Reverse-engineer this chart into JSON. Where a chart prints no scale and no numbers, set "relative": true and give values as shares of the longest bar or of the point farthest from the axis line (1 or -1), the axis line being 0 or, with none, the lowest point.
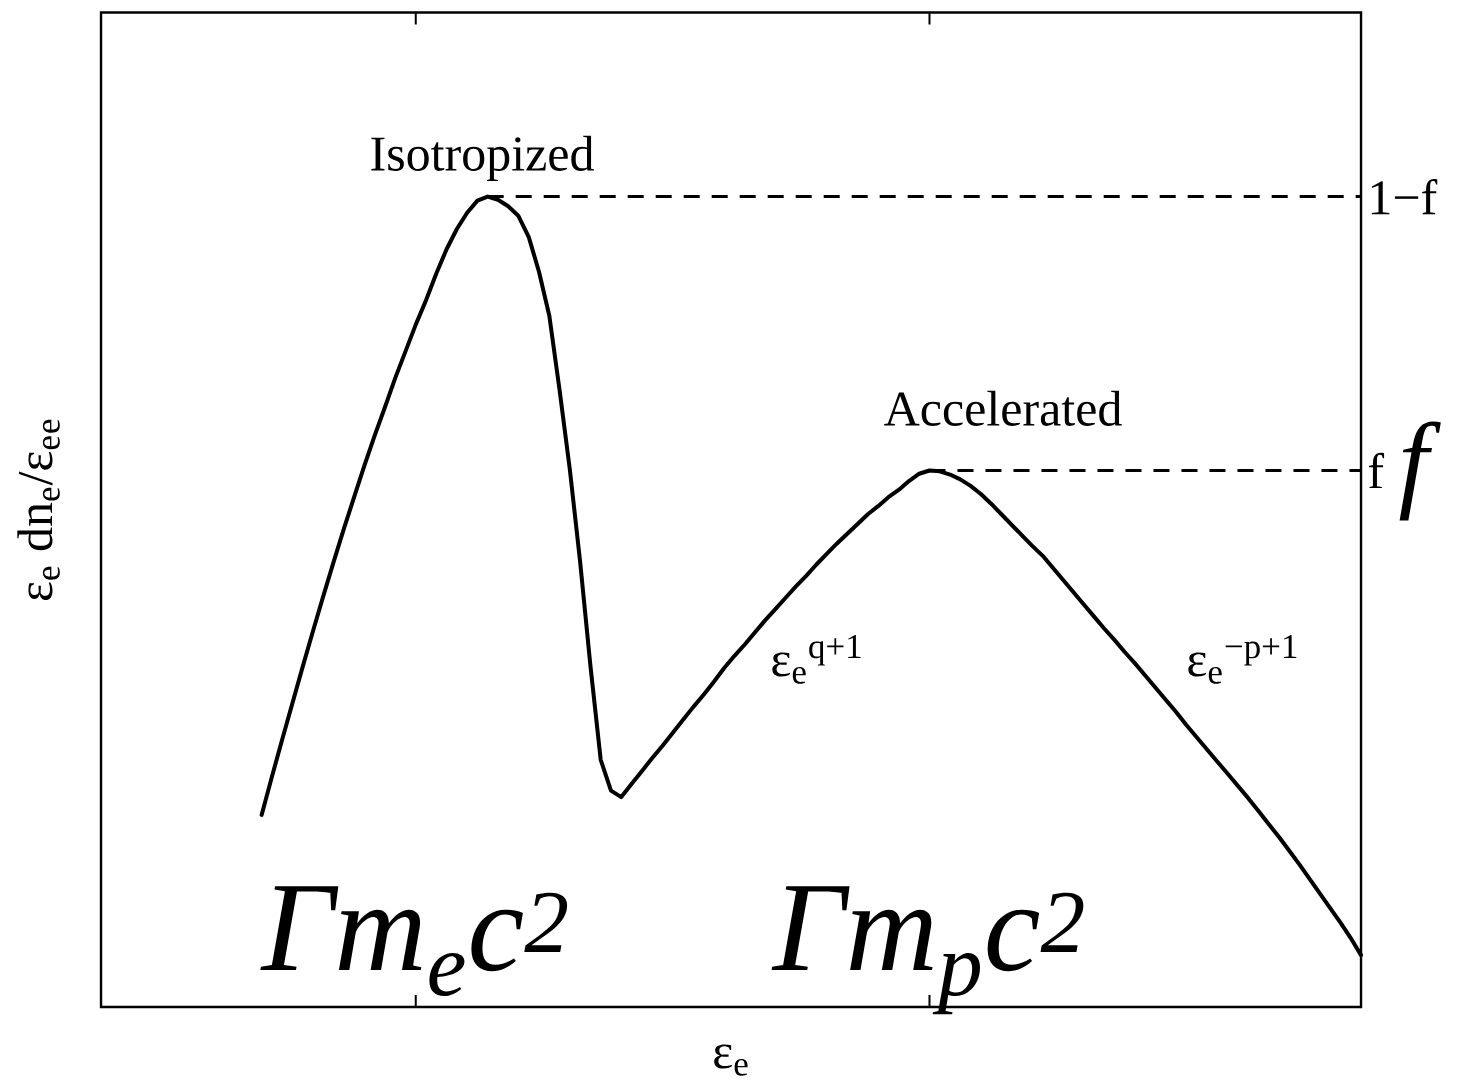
{
  "chart_data": {
    "type": "line",
    "relative": true,
    "color": "#000000",
    "xlabel": "ε$_{e}$",
    "ylabel": "ε$_{e}$ dn$_{e}$/ε$_{e}$$_{e}$",
    "categories": [
      null,
      null,
      null,
      null,
      null,
      null,
      null,
      null,
      null,
      null,
      null,
      null,
      null,
      null,
      null,
      "Γm$_{e}$c$^{2}$",
      null,
      null,
      null,
      null,
      null,
      null,
      null,
      null,
      null,
      null,
      null,
      null,
      null,
      null,
      null,
      null,
      null,
      null,
      null,
      null,
      null,
      null,
      null,
      null,
      null,
      null,
      null,
      null,
      null,
      null,
      null,
      null,
      null,
      null,
      null,
      null,
      null,
      null,
      null,
      null,
      null,
      null,
      null,
      null,
      null,
      null,
      null,
      null,
      null,
      "Γm$_{p}$c$^{2}$",
      null,
      null,
      null,
      null,
      null,
      null,
      null,
      null,
      null,
      null,
      null,
      null,
      null,
      null,
      null,
      null,
      null,
      null,
      null,
      null,
      null,
      null,
      null,
      null,
      null,
      null,
      null,
      null,
      null,
      null,
      null,
      null,
      null,
      null,
      null,
      null,
      null,
      null,
      null,
      null,
      null,
      null
    ],
    "values": [
      0.237,
      0.284,
      0.33,
      0.375,
      0.42,
      0.464,
      0.507,
      0.549,
      0.59,
      0.629,
      0.668,
      0.705,
      0.74,
      0.776,
      0.809,
      0.842,
      0.872,
      0.905,
      0.935,
      0.96,
      0.98,
      0.995,
      1,
      0.996,
      0.988,
      0.976,
      0.95,
      0.907,
      0.853,
      0.761,
      0.663,
      0.549,
      0.421,
      0.305,
      0.267,
      0.259,
      0.275,
      0.291,
      0.307,
      0.322,
      0.338,
      0.354,
      0.37,
      0.385,
      0.401,
      0.418,
      0.433,
      0.447,
      0.462,
      0.477,
      0.491,
      0.505,
      0.519,
      0.532,
      0.546,
      0.559,
      0.572,
      0.584,
      0.596,
      0.608,
      0.618,
      0.629,
      0.638,
      0.649,
      0.658,
      0.662,
      0.661,
      0.657,
      0.651,
      0.643,
      0.633,
      0.621,
      0.608,
      0.595,
      0.582,
      0.569,
      0.557,
      0.542,
      0.527,
      0.512,
      0.497,
      0.482,
      0.467,
      0.453,
      0.438,
      0.424,
      0.409,
      0.394,
      0.379,
      0.364,
      0.348,
      0.333,
      0.318,
      0.303,
      0.288,
      0.273,
      0.258,
      0.242,
      0.226,
      0.21,
      0.193,
      0.176,
      0.158,
      0.14,
      0.122,
      0.104,
      0.085,
      0.064
    ],
    "ref_lines": [
      {
        "axis": "y",
        "value": 1,
        "label": "1−f",
        "line_style": "dashed",
        "color": "#000000"
      },
      {
        "axis": "y",
        "value": 0.662,
        "label": "f",
        "line_style": "dashed",
        "color": "#000000"
      }
    ],
    "annotations": [
      "Isotropized",
      "Accelerated",
      "ε$_{e}$$^{q+1}$",
      "ε$_{e}$$^{−p+1}$",
      "*f*"
    ]
  }
}
